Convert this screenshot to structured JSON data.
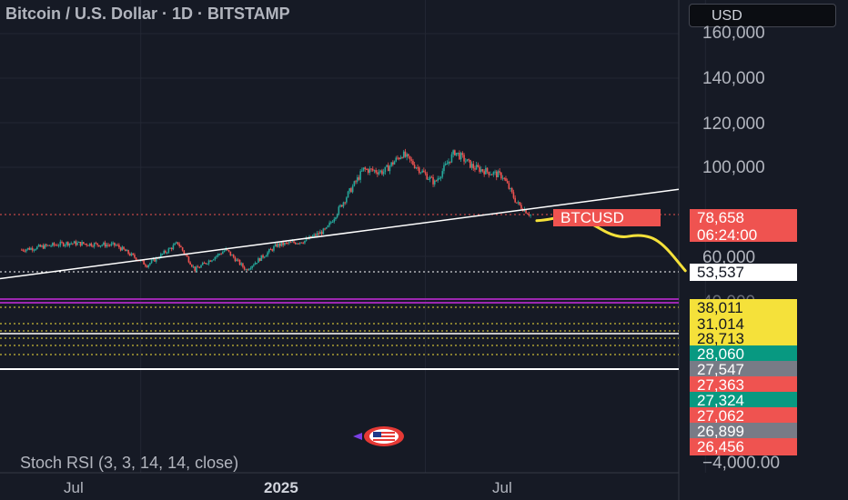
{
  "header": {
    "title": "Bitcoin / U.S. Dollar · 1D · BITSTAMP",
    "currency_label": "USD"
  },
  "colors": {
    "background": "#161a25",
    "up": "#26a69a",
    "down": "#ef5350",
    "projection": "#f5e13a",
    "trendline": "#ffffff",
    "level_line": "#f5e13a",
    "purple_line": "#9c27b0"
  },
  "price_axis": {
    "ticks": [
      "160,000",
      "140,000",
      "120,000",
      "100,000",
      "60,000",
      "40,000"
    ]
  },
  "price_badges": [
    {
      "label": "BTCUSD",
      "value": "78,658",
      "sub": "06:24:00",
      "kind": "last-price"
    },
    {
      "value": "53,537",
      "kind": "white"
    },
    {
      "value": "38,011",
      "kind": "yellow"
    },
    {
      "value": "31,014",
      "kind": "yellow"
    },
    {
      "value": "28,713",
      "kind": "yellow"
    },
    {
      "value": "28,060",
      "kind": "green"
    },
    {
      "value": "27,547",
      "kind": "gray"
    },
    {
      "value": "27,363",
      "kind": "red"
    },
    {
      "value": "27,324",
      "kind": "green"
    },
    {
      "value": "27,062",
      "kind": "red"
    },
    {
      "value": "26,899",
      "kind": "gray"
    },
    {
      "value": "26,456",
      "kind": "red"
    }
  ],
  "indicator": {
    "label": "Stoch RSI (3, 3, 14, 14, close)",
    "value": "−4,000.00"
  },
  "time_axis": {
    "ticks": [
      "Jul",
      "2025",
      "Jul"
    ]
  },
  "flag_icon": "us-flag-icon",
  "chart_data": {
    "type": "candlestick",
    "title": "Bitcoin / U.S. Dollar · 1D · BITSTAMP",
    "x_range": [
      "2024-04",
      "2025-09"
    ],
    "y_range": [
      40000,
      160000
    ],
    "grid": true,
    "price_path": [
      {
        "date": "2024-04-15",
        "close": 63000
      },
      {
        "date": "2024-05-15",
        "close": 66000
      },
      {
        "date": "2024-06-15",
        "close": 65000
      },
      {
        "date": "2024-07-05",
        "close": 56000
      },
      {
        "date": "2024-07-25",
        "close": 66000
      },
      {
        "date": "2024-08-05",
        "close": 54000
      },
      {
        "date": "2024-08-25",
        "close": 63000
      },
      {
        "date": "2024-09-07",
        "close": 54000
      },
      {
        "date": "2024-09-27",
        "close": 65000
      },
      {
        "date": "2024-10-15",
        "close": 67000
      },
      {
        "date": "2024-10-29",
        "close": 72000
      },
      {
        "date": "2024-11-12",
        "close": 88000
      },
      {
        "date": "2024-11-22",
        "close": 99000
      },
      {
        "date": "2024-12-05",
        "close": 98000
      },
      {
        "date": "2024-12-17",
        "close": 106000
      },
      {
        "date": "2025-01-07",
        "close": 93000
      },
      {
        "date": "2025-01-20",
        "close": 107000
      },
      {
        "date": "2025-02-01",
        "close": 100000
      },
      {
        "date": "2025-02-20",
        "close": 96000
      },
      {
        "date": "2025-03-01",
        "close": 84000
      },
      {
        "date": "2025-03-10",
        "close": 78658
      }
    ],
    "trendline": {
      "from": {
        "date": "2024-04-01",
        "price": 50000
      },
      "to": {
        "date": "2025-09-30",
        "price": 100000
      }
    },
    "projection_path": [
      {
        "date": "2025-03-14",
        "price": 76000
      },
      {
        "date": "2025-03-24",
        "price": 76500
      },
      {
        "date": "2025-04-03",
        "price": 79500
      },
      {
        "date": "2025-04-15",
        "price": 76000
      },
      {
        "date": "2025-05-05",
        "price": 68000
      },
      {
        "date": "2025-05-20",
        "price": 70000
      },
      {
        "date": "2025-06-02",
        "price": 67000
      },
      {
        "date": "2025-06-18",
        "price": 53537
      }
    ],
    "horizontal_levels": [
      78658,
      53537,
      38011,
      31014,
      28713,
      28060,
      27547
    ]
  }
}
